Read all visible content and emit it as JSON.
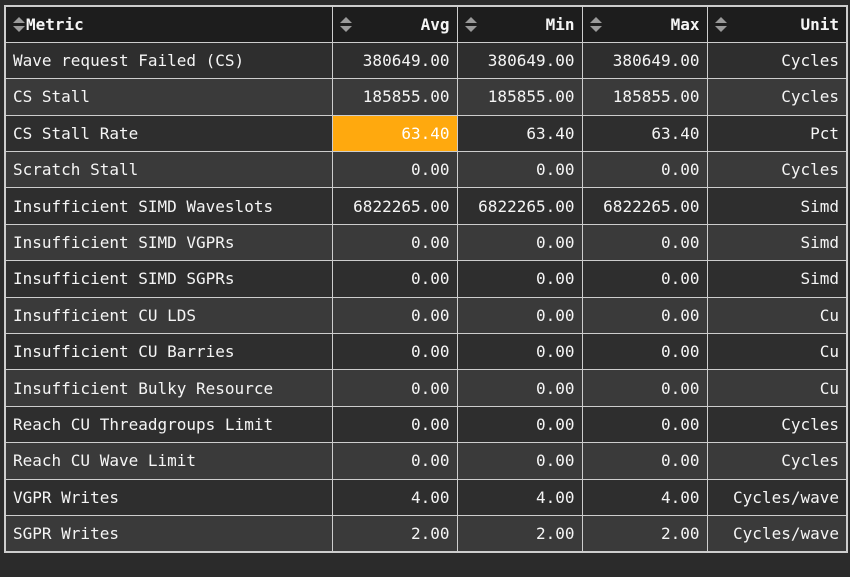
{
  "colors": {
    "page_bg": "#2b2b2b",
    "header_bg": "#1d1d1d",
    "row_odd_bg": "#2e2e2e",
    "row_even_bg": "#3a3a3a",
    "grid_line": "#cdcdcd",
    "text": "#f5f5f5",
    "highlight_cell_bg": "#ffa90e",
    "sort_icon": "#9a9a9a"
  },
  "table": {
    "columns": [
      {
        "key": "metric",
        "label": "Metric",
        "align": "left",
        "sortable": true
      },
      {
        "key": "avg",
        "label": "Avg",
        "align": "right",
        "sortable": true
      },
      {
        "key": "min",
        "label": "Min",
        "align": "right",
        "sortable": true
      },
      {
        "key": "max",
        "label": "Max",
        "align": "right",
        "sortable": true
      },
      {
        "key": "unit",
        "label": "Unit",
        "align": "right",
        "sortable": true
      }
    ],
    "rows": [
      {
        "metric": "Wave request Failed (CS)",
        "avg": "380649.00",
        "min": "380649.00",
        "max": "380649.00",
        "unit": "Cycles"
      },
      {
        "metric": "CS Stall",
        "avg": "185855.00",
        "min": "185855.00",
        "max": "185855.00",
        "unit": "Cycles"
      },
      {
        "metric": "CS Stall Rate",
        "avg": "63.40",
        "min": "63.40",
        "max": "63.40",
        "unit": "Pct",
        "highlight_cell": "avg"
      },
      {
        "metric": "Scratch Stall",
        "avg": "0.00",
        "min": "0.00",
        "max": "0.00",
        "unit": "Cycles"
      },
      {
        "metric": "Insufficient SIMD Waveslots",
        "avg": "6822265.00",
        "min": "6822265.00",
        "max": "6822265.00",
        "unit": "Simd"
      },
      {
        "metric": "Insufficient SIMD VGPRs",
        "avg": "0.00",
        "min": "0.00",
        "max": "0.00",
        "unit": "Simd"
      },
      {
        "metric": "Insufficient SIMD SGPRs",
        "avg": "0.00",
        "min": "0.00",
        "max": "0.00",
        "unit": "Simd"
      },
      {
        "metric": "Insufficient CU LDS",
        "avg": "0.00",
        "min": "0.00",
        "max": "0.00",
        "unit": "Cu"
      },
      {
        "metric": "Insufficient CU Barries",
        "avg": "0.00",
        "min": "0.00",
        "max": "0.00",
        "unit": "Cu"
      },
      {
        "metric": "Insufficient Bulky Resource",
        "avg": "0.00",
        "min": "0.00",
        "max": "0.00",
        "unit": "Cu"
      },
      {
        "metric": "Reach CU Threadgroups Limit",
        "avg": "0.00",
        "min": "0.00",
        "max": "0.00",
        "unit": "Cycles"
      },
      {
        "metric": "Reach CU Wave Limit",
        "avg": "0.00",
        "min": "0.00",
        "max": "0.00",
        "unit": "Cycles"
      },
      {
        "metric": "VGPR Writes",
        "avg": "4.00",
        "min": "4.00",
        "max": "4.00",
        "unit": "Cycles/wave"
      },
      {
        "metric": "SGPR Writes",
        "avg": "2.00",
        "min": "2.00",
        "max": "2.00",
        "unit": "Cycles/wave"
      }
    ]
  }
}
